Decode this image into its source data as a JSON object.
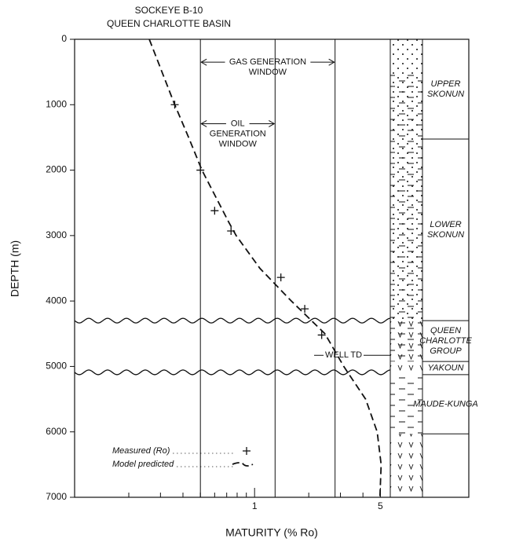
{
  "chart_data": {
    "type": "scatter",
    "title": [
      "SOCKEYE B-10",
      "QUEEN CHARLOTTE BASIN"
    ],
    "x_label": "MATURITY (% Ro)",
    "y_label": "DEPTH (m)",
    "xscale": "log",
    "yinverted": true,
    "xlim": [
      0.1,
      15.5
    ],
    "ylim": [
      0,
      7000
    ],
    "xticks": [
      1,
      5
    ],
    "xminorticks": [
      0.2,
      0.3,
      0.4,
      0.5,
      0.6,
      0.7,
      0.8,
      0.9,
      2,
      3,
      4
    ],
    "yticks": [
      0,
      1000,
      2000,
      3000,
      4000,
      5000,
      6000,
      7000
    ],
    "series": [
      {
        "name": "Measured (Ro)",
        "type": "scatter",
        "color": "#111111",
        "x": [
          0.36,
          0.5,
          0.6,
          0.74,
          1.4,
          1.9,
          2.36
        ],
        "y": [
          1000,
          2000,
          2620,
          2930,
          3640,
          4120,
          4520
        ]
      },
      {
        "name": "Model predicted",
        "type": "line",
        "color": "#111111",
        "x": [
          0.26,
          0.36,
          0.43,
          0.51,
          0.72,
          0.79,
          1.07,
          1.6,
          2.46,
          3.13,
          4.14,
          4.8,
          5.05,
          4.97
        ],
        "y": [
          0,
          1000,
          1500,
          2000,
          2800,
          3000,
          3500,
          4000,
          4500,
          5000,
          5500,
          6000,
          6500,
          7000
        ]
      }
    ],
    "windows": [
      {
        "label": [
          "GAS GENERATION",
          "WINDOW"
        ],
        "range": [
          0.5,
          2.8
        ],
        "depth": 350
      },
      {
        "label": [
          "OIL",
          "GENERATION",
          "WINDOW"
        ],
        "range": [
          0.5,
          1.3
        ],
        "depth": 1290
      }
    ],
    "well_td": {
      "label": "WELL TD",
      "depth": 4830
    },
    "unconformities": [
      4300,
      5090
    ],
    "formations": [
      {
        "label": [
          "UPPER",
          "SKONUN"
        ],
        "top": 0,
        "bottom": 1525
      },
      {
        "label": [
          "LOWER",
          "SKONUN"
        ],
        "top": 1525,
        "bottom": 4300
      },
      {
        "label": [
          "QUEEN",
          "CHARLOTTE",
          "GROUP"
        ],
        "top": 4300,
        "bottom": 4925
      },
      {
        "label": [
          "YAKOUN"
        ],
        "top": 4925,
        "bottom": 5125
      },
      {
        "label": [
          "MAUDE-KUNGA"
        ],
        "top": 5125,
        "bottom": 6030
      }
    ]
  }
}
